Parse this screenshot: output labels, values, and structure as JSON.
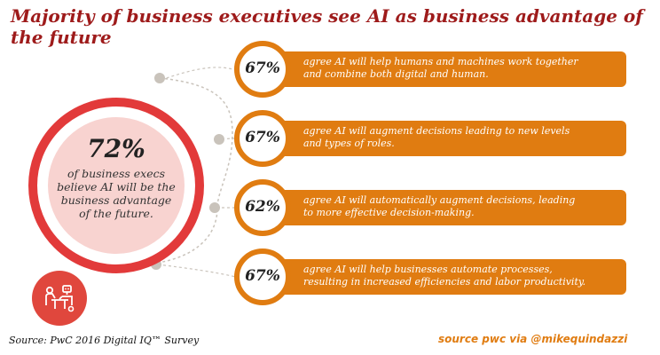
{
  "title": "Majority of business executives see AI as business advantage of the future",
  "main_stat": {
    "percent": "72%",
    "description": "of business execs believe AI will be the business advantage of the future."
  },
  "stats": [
    {
      "percent": "67%",
      "line1": "agree AI will help humans and machines work together",
      "line2": "and combine both digital and human."
    },
    {
      "percent": "67%",
      "line1": "agree AI will augment decisions leading to new levels",
      "line2": "and types of roles."
    },
    {
      "percent": "62%",
      "line1": "agree AI will automatically augment decisions, leading",
      "line2": "to more effective decision-making."
    },
    {
      "percent": "67%",
      "line1": "agree AI will help businesses automate processes,",
      "line2": "resulting in increased efficiencies and labor productivity."
    }
  ],
  "source_left": "Source: PwC 2016 Digital IQ™ Survey",
  "source_right": "source pwc via @mikequindazzi",
  "colors": {
    "title": "#9e1b1b",
    "accent_orange": "#e07c11",
    "ring_red": "#e23a3a",
    "inner_pink": "#f8d3d0",
    "dot_grey": "#c9c3bb"
  },
  "icons": {
    "robot_icon": "human-and-robot-working-icon"
  }
}
